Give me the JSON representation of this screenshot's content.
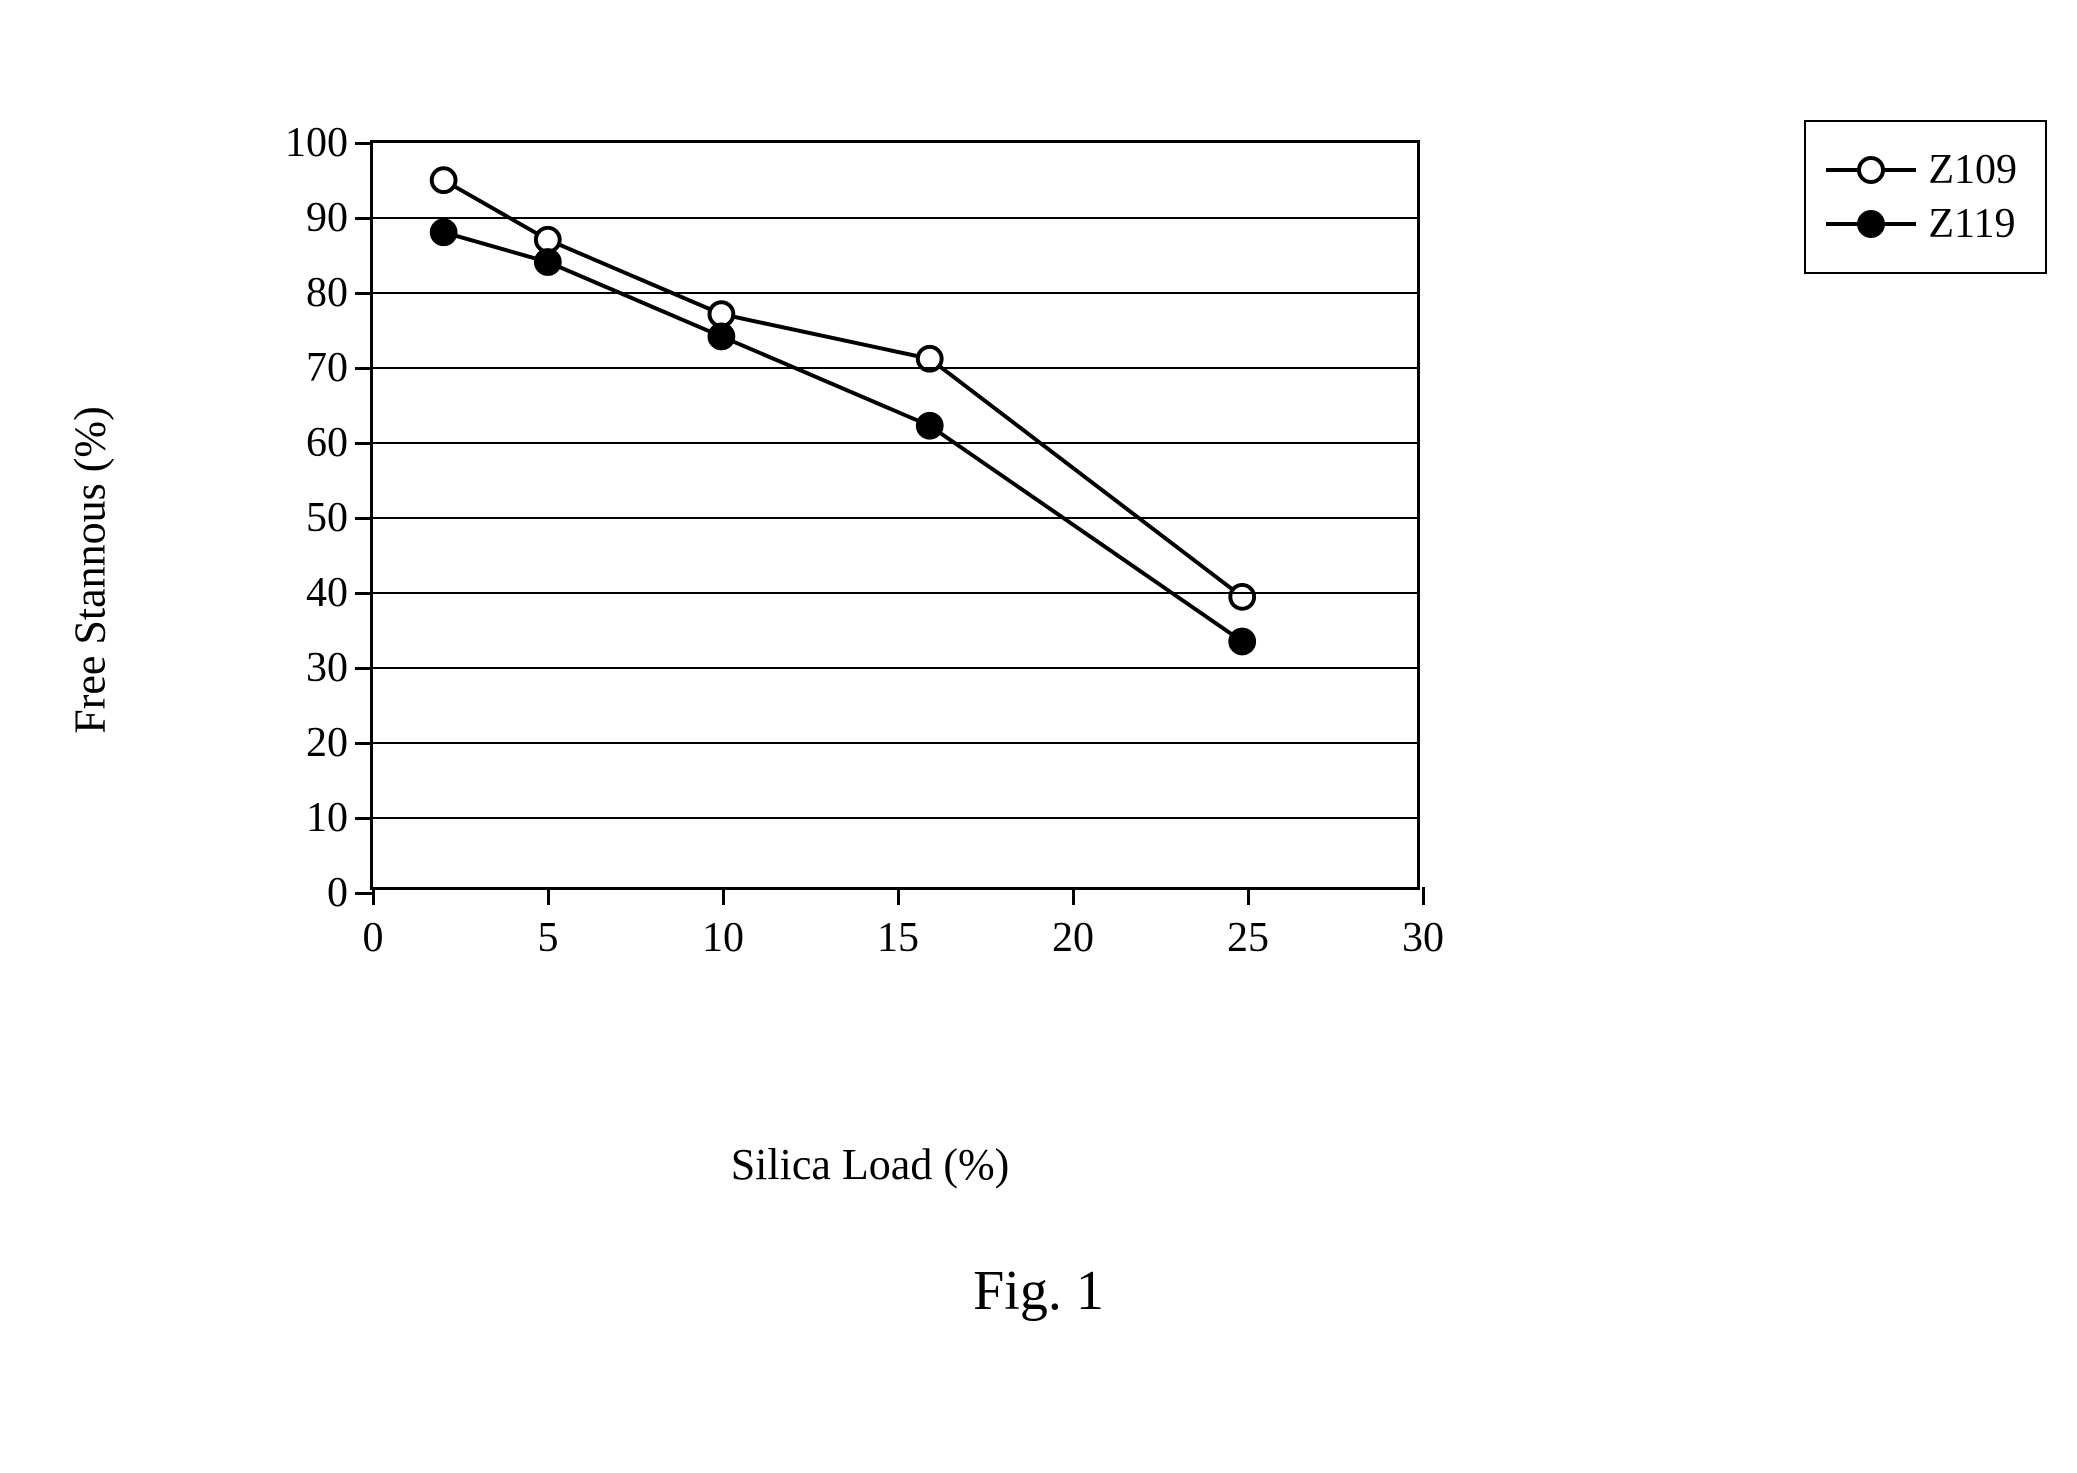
{
  "chart": {
    "type": "line",
    "xlabel": "Silica Load (%)",
    "ylabel": "Free Stannous (%)",
    "xlim": [
      0,
      30
    ],
    "ylim": [
      0,
      100
    ],
    "xtick_step": 5,
    "ytick_step": 10,
    "x_ticks": [
      0,
      5,
      10,
      15,
      20,
      25,
      30
    ],
    "y_ticks": [
      0,
      10,
      20,
      30,
      40,
      50,
      60,
      70,
      80,
      90,
      100
    ],
    "grid_color": "#000000",
    "background_color": "#ffffff",
    "border_color": "#000000",
    "line_width": 4,
    "marker_size": 12,
    "label_fontsize": 44,
    "tick_fontsize": 42,
    "series": [
      {
        "name": "Z109",
        "marker": "circle-open",
        "marker_fill": "#ffffff",
        "marker_stroke": "#000000",
        "line_color": "#000000",
        "x": [
          2,
          5,
          10,
          16,
          25
        ],
        "y": [
          95,
          87,
          77,
          71,
          39
        ]
      },
      {
        "name": "Z119",
        "marker": "circle-filled",
        "marker_fill": "#000000",
        "marker_stroke": "#000000",
        "line_color": "#000000",
        "x": [
          2,
          5,
          10,
          16,
          25
        ],
        "y": [
          88,
          84,
          74,
          62,
          33
        ]
      }
    ],
    "legend_position": "right-outside-top"
  },
  "caption": "Fig. 1"
}
